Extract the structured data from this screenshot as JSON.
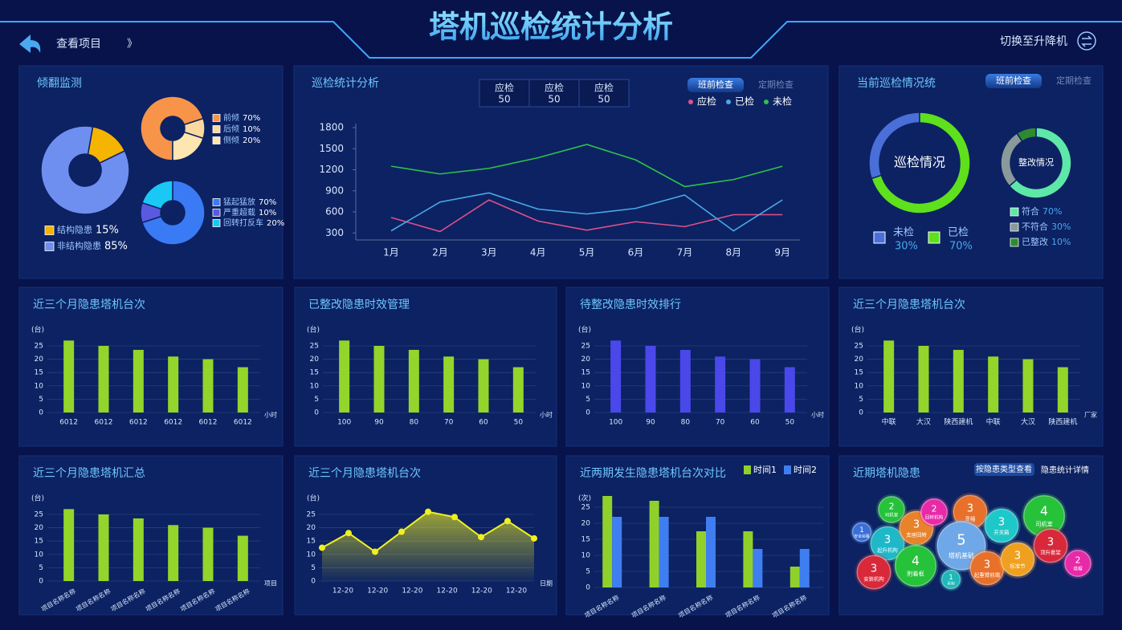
{
  "header": {
    "back": "查看项目",
    "more": "》",
    "title": "塔机巡检统计分析",
    "switch": "切换至升降机"
  },
  "chart_data": [
    {
      "type": "donut",
      "title": "倾翻监测",
      "pies": [
        {
          "categories": [
            "结构隐患",
            "非结构隐患"
          ],
          "values": [
            15,
            85
          ],
          "value_labels": [
            "15%",
            "85%"
          ],
          "colors": [
            "#f5b400",
            "#6f8ff0"
          ]
        },
        {
          "categories": [
            "前倾",
            "后倾",
            "侧倾"
          ],
          "values": [
            70,
            10,
            20
          ],
          "value_labels": [
            "70%",
            "10%",
            "20%"
          ],
          "colors": [
            "#f7944a",
            "#fcd9a0",
            "#fde6b0"
          ]
        },
        {
          "categories": [
            "猛起猛放",
            "严重超载",
            "回转打反车"
          ],
          "values": [
            70,
            10,
            20
          ],
          "value_labels": [
            "70%",
            "10%",
            "20%"
          ],
          "colors": [
            "#3a7bf5",
            "#5a5ae0",
            "#19c8f5"
          ]
        }
      ]
    },
    {
      "type": "line",
      "title": "巡检统计分析",
      "boxes": [
        {
          "label": "应检",
          "value": 50
        },
        {
          "label": "应检",
          "value": 50
        },
        {
          "label": "应检",
          "value": 50
        }
      ],
      "tabs": [
        "班前检查",
        "定期检查"
      ],
      "categories": [
        "1月",
        "2月",
        "3月",
        "4月",
        "5月",
        "6月",
        "7月",
        "8月",
        "9月"
      ],
      "series": [
        {
          "name": "应检",
          "color": "#e0508a",
          "values": [
            520,
            320,
            770,
            470,
            340,
            460,
            390,
            560,
            560
          ]
        },
        {
          "name": "已检",
          "color": "#4aa8e8",
          "values": [
            330,
            740,
            870,
            640,
            570,
            650,
            840,
            330,
            770
          ]
        },
        {
          "name": "未检",
          "color": "#2ec24a",
          "values": [
            1250,
            1140,
            1220,
            1370,
            1560,
            1340,
            960,
            1060,
            1250
          ]
        }
      ],
      "ylim": [
        200,
        1800
      ],
      "yticks": [
        300,
        600,
        900,
        1200,
        1500,
        1800
      ]
    },
    {
      "type": "donut",
      "title": "当前巡检情况统",
      "tabs": [
        "班前检查",
        "定期检查"
      ],
      "pies": [
        {
          "center": "巡检情况",
          "categories": [
            "未检",
            "已检"
          ],
          "values": [
            30,
            70
          ],
          "value_labels": [
            "30%",
            "70%"
          ],
          "colors": [
            "#4a6fd8",
            "#5ee01c"
          ]
        },
        {
          "center": "整改情况",
          "categories": [
            "符合",
            "不符合",
            "已整改"
          ],
          "values": [
            70,
            30,
            10
          ],
          "value_labels": [
            "70%",
            "30%",
            "10%"
          ],
          "colors": [
            "#5de8a8",
            "#8a9a9a",
            "#2f8a2f"
          ]
        }
      ]
    },
    {
      "type": "bar",
      "title": "近三个月隐患塔机台次",
      "y_unit": "(台)",
      "x_unit": "小时",
      "categories": [
        "6012",
        "6012",
        "6012",
        "6012",
        "6012",
        "6012"
      ],
      "values": [
        27,
        25,
        23.5,
        21,
        20,
        17
      ],
      "color": "#93d52a",
      "ylim": [
        0,
        28
      ],
      "yticks": [
        0,
        5,
        10,
        15,
        20,
        25
      ]
    },
    {
      "type": "bar",
      "title": "已整改隐患时效管理",
      "y_unit": "(台)",
      "x_unit": "小时",
      "categories": [
        "100",
        "90",
        "80",
        "70",
        "60",
        "50"
      ],
      "values": [
        27,
        25,
        23.5,
        21,
        20,
        17
      ],
      "color": "#93d52a",
      "ylim": [
        0,
        28
      ],
      "yticks": [
        0,
        5,
        10,
        15,
        20,
        25
      ]
    },
    {
      "type": "bar",
      "title": "待整改隐患时效排行",
      "y_unit": "(台)",
      "x_unit": "小时",
      "categories": [
        "100",
        "90",
        "80",
        "70",
        "60",
        "50"
      ],
      "values": [
        27,
        25,
        23.5,
        21,
        20,
        17
      ],
      "color": "#4a48ea",
      "ylim": [
        0,
        28
      ],
      "yticks": [
        0,
        5,
        10,
        15,
        20,
        25
      ]
    },
    {
      "type": "bar",
      "title": "近三个月隐患塔机台次",
      "y_unit": "(台)",
      "x_unit": "厂家",
      "categories": [
        "中联",
        "大汉",
        "陕西建机",
        "中联",
        "大汉",
        "陕西建机"
      ],
      "values": [
        27,
        25,
        23.5,
        21,
        20,
        17
      ],
      "color": "#93d52a",
      "ylim": [
        0,
        28
      ],
      "yticks": [
        0,
        5,
        10,
        15,
        20,
        25
      ]
    },
    {
      "type": "bar",
      "title": "近三个月隐患塔机汇总",
      "y_unit": "(台)",
      "x_unit": "项目",
      "categories": [
        "项目名称名称",
        "项目名称名称",
        "项目名称名称",
        "项目名称名称",
        "项目名称名称",
        "项目名称名称"
      ],
      "values": [
        27,
        25,
        23.5,
        21,
        20,
        17
      ],
      "color": "#93d52a",
      "ylim": [
        0,
        28
      ],
      "yticks": [
        0,
        5,
        10,
        15,
        20,
        25
      ]
    },
    {
      "type": "area",
      "title": "近三个月隐患塔机台次",
      "y_unit": "(台)",
      "x_unit": "日期",
      "x_labels": [
        "12-20",
        "12-20",
        "12-20",
        "12-20",
        "12-20",
        "12-20"
      ],
      "values": [
        12.5,
        18,
        11,
        18.5,
        26,
        24,
        16.5,
        22.5,
        16
      ],
      "color": "#f0f020",
      "ylim": [
        0,
        28
      ],
      "yticks": [
        0,
        5,
        10,
        15,
        20,
        25
      ]
    },
    {
      "type": "bar",
      "title": "近两期发生隐患塔机台次对比",
      "y_unit": "(次)",
      "categories": [
        "项目名称名称",
        "项目名称名称",
        "项目名称名称",
        "项目名称名称",
        "项目名称名称"
      ],
      "series": [
        {
          "name": "时间1",
          "color": "#8fd12a",
          "values": [
            28.5,
            27,
            17.5,
            17.5,
            6.5
          ]
        },
        {
          "name": "时间2",
          "color": "#3f7ef0",
          "values": [
            22,
            22,
            22,
            12,
            12
          ]
        }
      ],
      "ylim": [
        0,
        30
      ],
      "yticks": [
        0,
        5,
        10,
        15,
        20,
        25
      ]
    },
    {
      "type": "bubble",
      "title": "近期塔机隐患",
      "buttons": [
        "按隐患类型查看",
        "隐患统计详情"
      ],
      "values": [
        1,
        2,
        3,
        3,
        2,
        3,
        5,
        3,
        4,
        3,
        3,
        4,
        1,
        3,
        3,
        2
      ],
      "labels": [
        "安全装置",
        "司机室",
        "起升机构",
        "支座回转",
        "回转机构",
        "变幅",
        "塔机基础",
        "开关箱",
        "司机室",
        "顶升套架",
        "安装机构",
        "附着框",
        "吊钩",
        "起重臂前端",
        "标准节",
        "塔帽"
      ],
      "colors": [
        "#3a6fd8",
        "#25c23a",
        "#1fb8c8",
        "#e8832a",
        "#e82aa8",
        "#e8702a",
        "#6fa8e8",
        "#1fc8c8",
        "#25c23a",
        "#d8283a",
        "#d8283a",
        "#25c23a",
        "#1fb8b8",
        "#e8702a",
        "#f0a020",
        "#e82aa8"
      ]
    }
  ]
}
